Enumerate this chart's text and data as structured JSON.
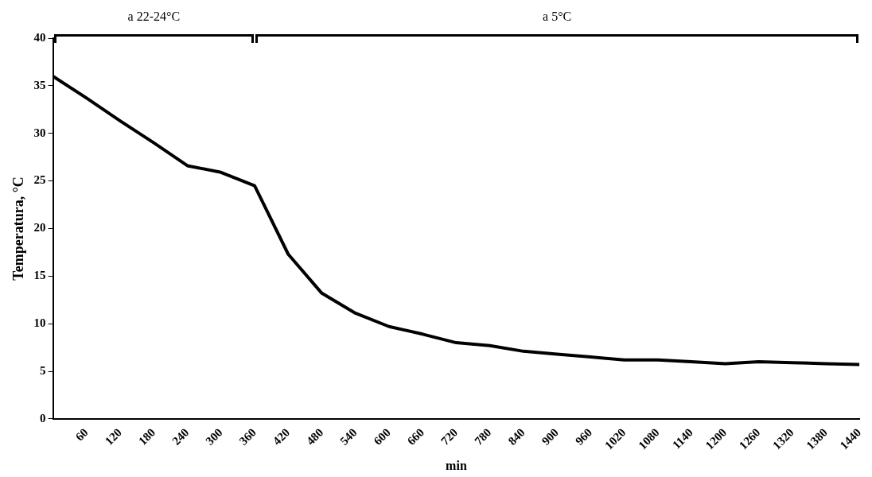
{
  "chart_data": {
    "type": "line",
    "xlabel": "min",
    "ylabel": "Temperatura, °C",
    "x": [
      0,
      60,
      120,
      180,
      240,
      300,
      360,
      420,
      480,
      540,
      600,
      660,
      720,
      780,
      840,
      900,
      960,
      1020,
      1080,
      1140,
      1200,
      1260,
      1320,
      1380,
      1440
    ],
    "series": [
      {
        "color": "#000000",
        "values": [
          36,
          33.7,
          31.3,
          29,
          26.6,
          25.9,
          24.5,
          17.3,
          13.2,
          11.1,
          9.7,
          8.9,
          8,
          7.7,
          7.1,
          6.8,
          6.5,
          6.2,
          6.2,
          6,
          5.8,
          6,
          5.9,
          5.8,
          5.7
        ]
      }
    ],
    "xlim": [
      0,
      1440
    ],
    "xticks": [
      60,
      120,
      180,
      240,
      300,
      360,
      420,
      480,
      540,
      600,
      660,
      720,
      780,
      840,
      900,
      960,
      1020,
      1080,
      1140,
      1200,
      1260,
      1320,
      1380,
      1440
    ],
    "ylim": [
      0,
      40
    ],
    "yticks": [
      0,
      5,
      10,
      15,
      20,
      25,
      30,
      35,
      40
    ],
    "annotations": [
      "a 22-24°C",
      "a 5°C"
    ],
    "grid": false,
    "legend": false,
    "marker": "none",
    "line_style": "solid"
  }
}
